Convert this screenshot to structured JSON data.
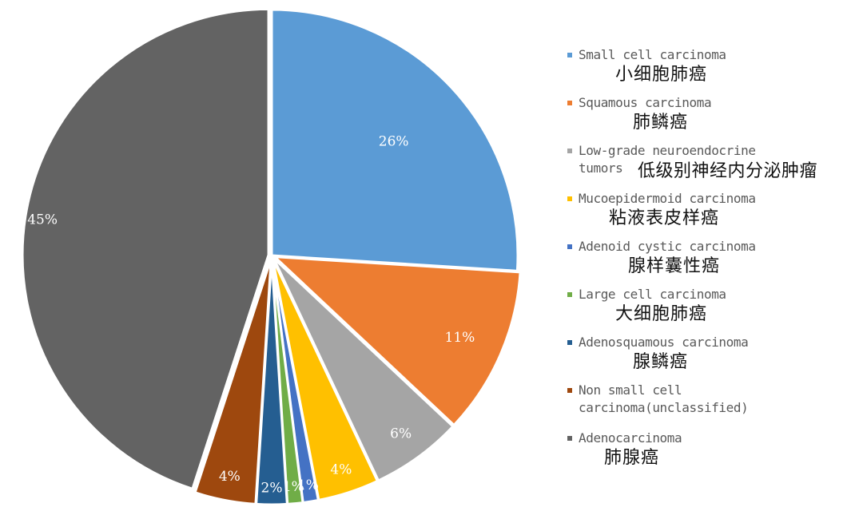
{
  "chart_data": {
    "type": "pie",
    "title": "",
    "slices": [
      {
        "label": "26%",
        "value": 26,
        "color": "#5B9BD5"
      },
      {
        "label": "11%",
        "value": 11,
        "color": "#ED7D31"
      },
      {
        "label": "6%",
        "value": 6,
        "color": "#A5A5A5"
      },
      {
        "label": "4%",
        "value": 4,
        "color": "#FFC000"
      },
      {
        "label": "1%",
        "value": 1,
        "color": "#4472C4"
      },
      {
        "label": "1%",
        "value": 1,
        "color": "#70AD47"
      },
      {
        "label": "2%",
        "value": 2,
        "color": "#255E91"
      },
      {
        "label": "4%",
        "value": 4,
        "color": "#9E480E"
      },
      {
        "label": "45%",
        "value": 45,
        "color": "#636363"
      }
    ],
    "legend_placement": "right",
    "legend": [
      {
        "en": "Small cell carcinoma",
        "zh": "小细胞肺癌",
        "color": "#5B9BD5"
      },
      {
        "en": "Squamous carcinoma",
        "zh": "肺鳞癌",
        "color": "#ED7D31"
      },
      {
        "en": "Low-grade neuroendocrine\ntumors",
        "zh": "低级别神经内分泌肿瘤",
        "color": "#A5A5A5"
      },
      {
        "en": "Mucoepidermoid carcinoma",
        "zh": "粘液表皮样癌",
        "color": "#FFC000"
      },
      {
        "en": "Adenoid cystic carcinoma",
        "zh": "腺样囊性癌",
        "color": "#4472C4"
      },
      {
        "en": "Large cell carcinoma",
        "zh": "大细胞肺癌",
        "color": "#70AD47"
      },
      {
        "en": "Adenosquamous carcinoma",
        "zh": "腺鳞癌",
        "color": "#255E91"
      },
      {
        "en": "Non small cell\ncarcinoma(unclassified)",
        "zh": "",
        "color": "#9E480E"
      },
      {
        "en": "Adenocarcinoma",
        "zh": "肺腺癌",
        "color": "#636363"
      }
    ]
  }
}
